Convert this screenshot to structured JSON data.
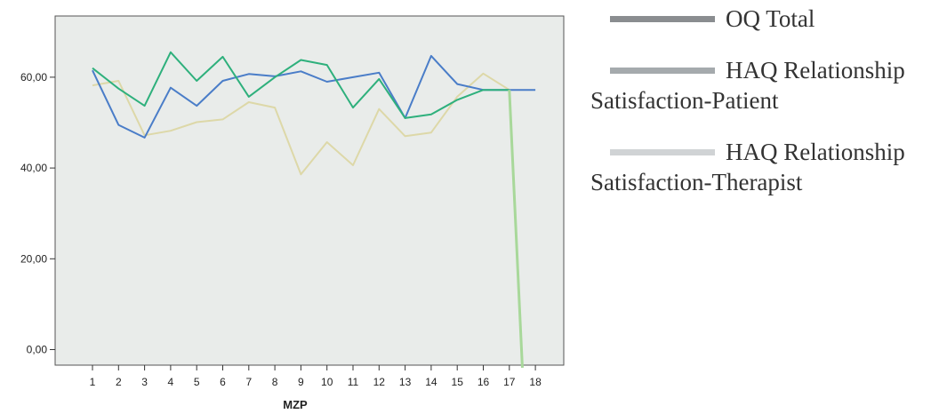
{
  "chart_data": {
    "type": "line",
    "xlabel": "MZP",
    "ylabel": "",
    "x": [
      1,
      2,
      3,
      4,
      5,
      6,
      7,
      8,
      9,
      10,
      11,
      12,
      13,
      14,
      15,
      16,
      17,
      18
    ],
    "y_ticks": [
      "0,00",
      "20,00",
      "40,00",
      "60,00"
    ],
    "ylim": [
      -4,
      72
    ],
    "grid": false,
    "background": "#e9ecea",
    "series": [
      {
        "key": "blue",
        "color": "#4a7dc8",
        "values": [
          61.5,
          49.5,
          46.7,
          57.7,
          53.7,
          59.2,
          60.7,
          60.2,
          61.3,
          59.0,
          60.0,
          61.0,
          51.0,
          64.7,
          58.5,
          57.2,
          57.2,
          57.2
        ]
      },
      {
        "key": "green",
        "color": "#2eb07c",
        "values": [
          62.0,
          57.5,
          53.7,
          65.5,
          59.2,
          64.5,
          55.7,
          60.0,
          63.8,
          62.7,
          53.3,
          59.6,
          51.0,
          51.8,
          55.0,
          57.2,
          57.2,
          null
        ]
      },
      {
        "key": "beige",
        "color": "#ddd8a8",
        "values": [
          58.2,
          59.2,
          47.2,
          48.2,
          50.1,
          50.7,
          54.5,
          53.3,
          38.6,
          45.7,
          40.6,
          53.0,
          47.0,
          47.8,
          55.7,
          60.8,
          57.2,
          null
        ]
      }
    ],
    "drop_line": {
      "color": "#a8d89a",
      "from_x": 17,
      "from_y": 57.2,
      "to_x": 17.5,
      "to_y": -4
    }
  },
  "legend": {
    "items": [
      {
        "label": "OQ Total",
        "color": "#8a8d90"
      },
      {
        "label": "HAQ Relationship Satisfaction-Patient",
        "color": "#a5aaad"
      },
      {
        "label": "HAQ Relationship Satisfaction-Therapist",
        "color": "#d0d3d5"
      }
    ]
  }
}
